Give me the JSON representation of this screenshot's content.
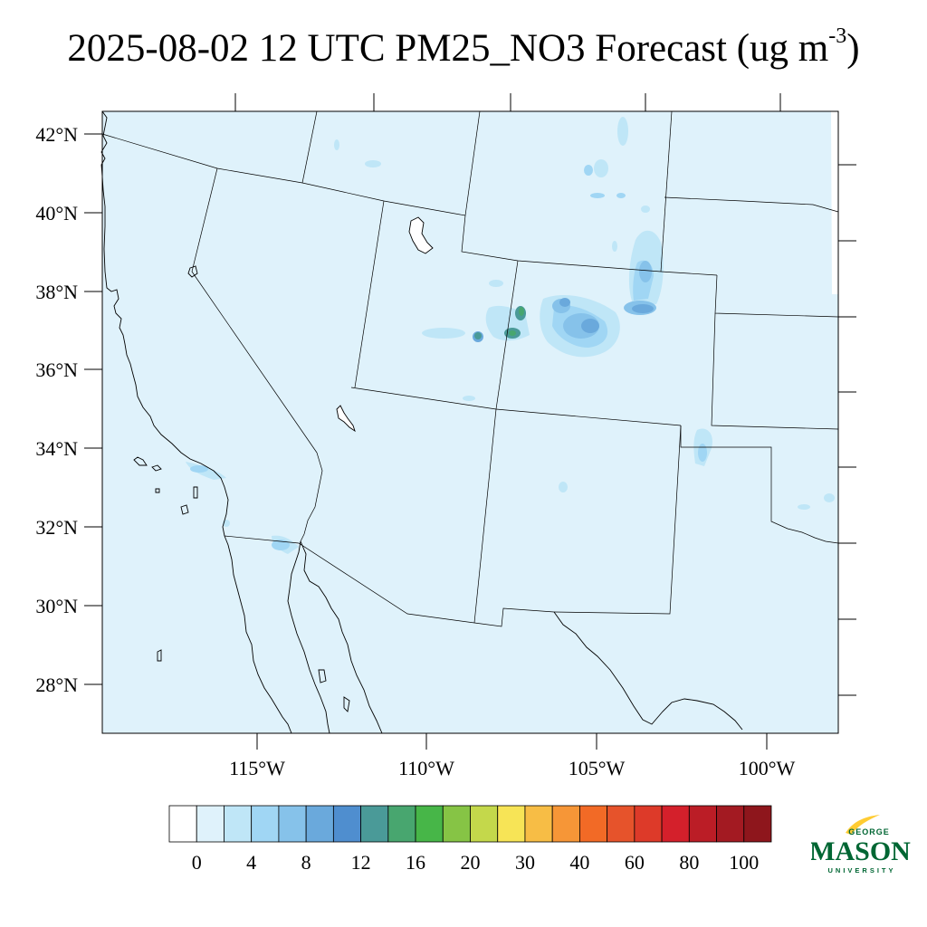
{
  "title": {
    "main": "2025-08-02 12 UTC PM25_NO3 Forecast (ug m",
    "sup": "-3",
    "close": ")"
  },
  "map": {
    "lat_labels": [
      "42°N",
      "40°N",
      "38°N",
      "36°N",
      "34°N",
      "32°N",
      "30°N",
      "28°N"
    ],
    "lon_labels": [
      "115°W",
      "110°W",
      "105°W",
      "100°W"
    ],
    "background_color": "#dff2fb"
  },
  "colorbar": {
    "colors": [
      "#ffffff",
      "#dff2fb",
      "#bfe6f7",
      "#a0d6f4",
      "#86c2ea",
      "#6aa9dc",
      "#4f8ecf",
      "#4a9a98",
      "#48a66f",
      "#47b648",
      "#86c445",
      "#c4d84b",
      "#f7e456",
      "#f7bd45",
      "#f69637",
      "#f26a26",
      "#e6532b",
      "#dd3a29",
      "#d4202b",
      "#bb1d26",
      "#a31a22",
      "#8e161c"
    ],
    "tick_labels": [
      "0",
      "4",
      "8",
      "12",
      "16",
      "20",
      "30",
      "40",
      "60",
      "80",
      "100"
    ]
  },
  "logo": {
    "top": "GEORGE",
    "main": "MASON",
    "bottom": "UNIVERSITY",
    "green": "#006633",
    "gold": "#ffcc33"
  }
}
